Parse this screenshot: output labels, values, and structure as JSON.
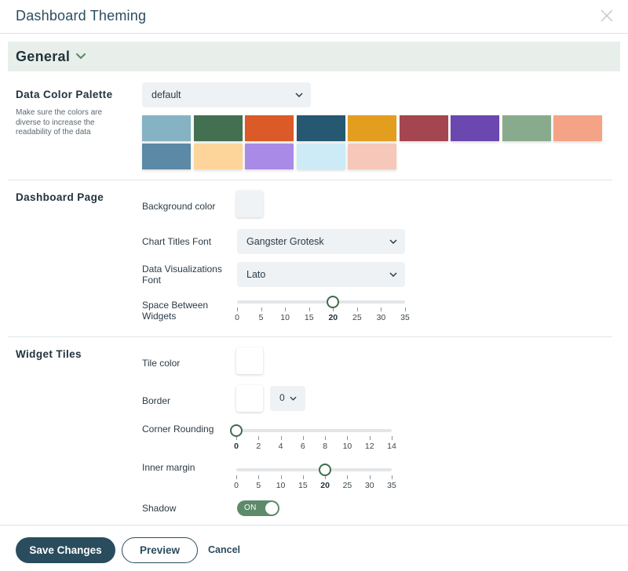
{
  "dialog": {
    "title": "Dashboard Theming"
  },
  "section": {
    "label": "General"
  },
  "palette": {
    "title": "Data Color Palette",
    "description": "Make sure the colors are diverse to increase the readability of the data",
    "selected": "default",
    "colors": [
      "#85b3c3",
      "#427050",
      "#db5a27",
      "#265871",
      "#e39e20",
      "#a44650",
      "#6b48b0",
      "#89ab8d",
      "#f5a386",
      "#5b89a6",
      "#fdd59b",
      "#a98be7",
      "#cdeaf7",
      "#f5c8b9"
    ]
  },
  "dashboard_page": {
    "title": "Dashboard Page",
    "background_color_label": "Background color",
    "background_color": "#f0f3f6",
    "chart_titles_font_label": "Chart Titles Font",
    "chart_titles_font": "Gangster Grotesk",
    "data_viz_font_label": "Data Visualizations Font",
    "data_viz_font": "Lato",
    "space_between_label": "Space Between Widgets",
    "space_between": {
      "min": 0,
      "max": 35,
      "value": 20,
      "ticks": [
        "0",
        "5",
        "10",
        "15",
        "20",
        "25",
        "30",
        "35"
      ]
    }
  },
  "widget_tiles": {
    "title": "Widget Tiles",
    "tile_color_label": "Tile color",
    "tile_color": "#ffffff",
    "border_label": "Border",
    "border_color": "#ffffff",
    "border_width": "0",
    "corner_rounding_label": "Corner Rounding",
    "corner_rounding": {
      "min": 0,
      "max": 14,
      "value": 0,
      "ticks": [
        "0",
        "2",
        "4",
        "6",
        "8",
        "10",
        "12",
        "14"
      ]
    },
    "inner_margin_label": "Inner margin",
    "inner_margin": {
      "min": 0,
      "max": 35,
      "value": 20,
      "ticks": [
        "0",
        "5",
        "10",
        "15",
        "20",
        "25",
        "30",
        "35"
      ]
    },
    "shadow_label": "Shadow",
    "shadow_state": "ON"
  },
  "footer": {
    "save_label": "Save Changes",
    "preview_label": "Preview",
    "cancel_label": "Cancel"
  },
  "accent": "#2a4d5e",
  "slider_accent": "#3e6b4d"
}
